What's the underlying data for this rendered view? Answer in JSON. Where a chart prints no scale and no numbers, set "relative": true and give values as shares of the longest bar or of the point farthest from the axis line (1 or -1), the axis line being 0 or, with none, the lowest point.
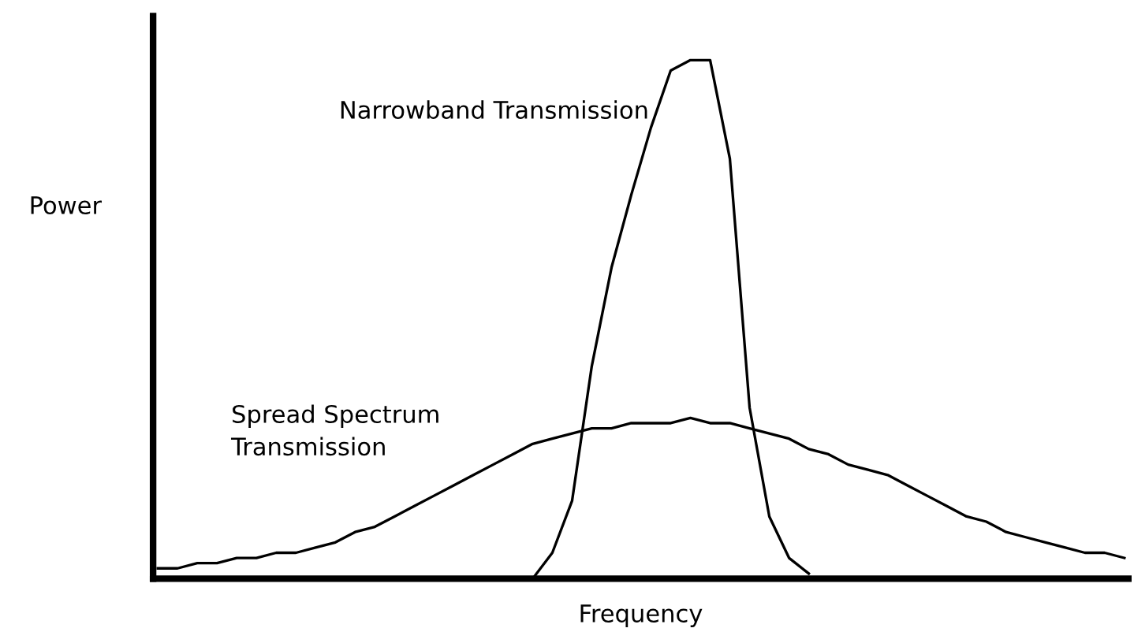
{
  "chart_data": {
    "type": "line",
    "relative": true,
    "xlabel": "Frequency",
    "ylabel": "Power",
    "legend": false,
    "marker": "none",
    "line_style": "solid",
    "categories": [
      null,
      null,
      null,
      null,
      null,
      null,
      null,
      null,
      null,
      null,
      null,
      null,
      null,
      null,
      null,
      null,
      null,
      null,
      null,
      null,
      null,
      null,
      null,
      null,
      null,
      null,
      null,
      null,
      null,
      null,
      null,
      null,
      null,
      null,
      null,
      null,
      null,
      null,
      null,
      null,
      null,
      null,
      null,
      null,
      null,
      null,
      null,
      null,
      null,
      null
    ],
    "series": [
      {
        "name": "Narrowband Transmission",
        "color": "#000000",
        "values": [
          null,
          null,
          null,
          null,
          null,
          null,
          null,
          null,
          null,
          null,
          null,
          null,
          null,
          null,
          null,
          null,
          null,
          null,
          null,
          0,
          0.05,
          0.15,
          0.41,
          0.6,
          0.74,
          0.87,
          0.98,
          1.0,
          1.0,
          0.81,
          0.33,
          0.12,
          0.04,
          0.01,
          null,
          null,
          null,
          null,
          null,
          null,
          null,
          null,
          null,
          null,
          null,
          null,
          null,
          null,
          null,
          null
        ]
      },
      {
        "name": "Spread Spectrum\nTransmission",
        "color": "#000000",
        "values": [
          0.02,
          0.02,
          0.03,
          0.03,
          0.04,
          0.04,
          0.05,
          0.05,
          0.06,
          0.07,
          0.09,
          0.1,
          0.12,
          0.14,
          0.16,
          0.18,
          0.2,
          0.22,
          0.24,
          0.26,
          0.27,
          0.28,
          0.29,
          0.29,
          0.3,
          0.3,
          0.3,
          0.31,
          0.3,
          0.3,
          0.29,
          0.28,
          0.27,
          0.25,
          0.24,
          0.22,
          0.21,
          0.2,
          0.18,
          0.16,
          0.14,
          0.12,
          0.11,
          0.09,
          0.08,
          0.07,
          0.06,
          0.05,
          0.05,
          0.04
        ]
      }
    ]
  }
}
